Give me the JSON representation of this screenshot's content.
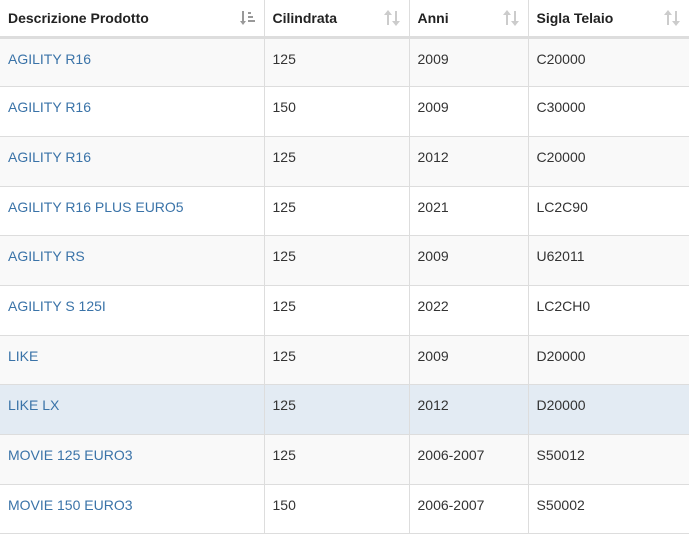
{
  "columns": [
    {
      "label": "Descrizione Prodotto",
      "sort": "sorted-asc"
    },
    {
      "label": "Cilindrata",
      "sort": "unsorted"
    },
    {
      "label": "Anni",
      "sort": "unsorted"
    },
    {
      "label": "Sigla Telaio",
      "sort": "unsorted"
    }
  ],
  "rows": [
    {
      "descrizione": "AGILITY R16",
      "cilindrata": "125",
      "anni": "2009",
      "sigla": "C20000"
    },
    {
      "descrizione": "AGILITY R16",
      "cilindrata": "150",
      "anni": "2009",
      "sigla": "C30000"
    },
    {
      "descrizione": "AGILITY R16",
      "cilindrata": "125",
      "anni": "2012",
      "sigla": "C20000"
    },
    {
      "descrizione": "AGILITY R16 PLUS EURO5",
      "cilindrata": "125",
      "anni": "2021",
      "sigla": "LC2C90"
    },
    {
      "descrizione": "AGILITY RS",
      "cilindrata": "125",
      "anni": "2009",
      "sigla": "U62011"
    },
    {
      "descrizione": "AGILITY S 125I",
      "cilindrata": "125",
      "anni": "2022",
      "sigla": "LC2CH0"
    },
    {
      "descrizione": "LIKE",
      "cilindrata": "125",
      "anni": "2009",
      "sigla": "D20000"
    },
    {
      "descrizione": "LIKE LX",
      "cilindrata": "125",
      "anni": "2012",
      "sigla": "D20000"
    },
    {
      "descrizione": "MOVIE 125 EURO3",
      "cilindrata": "125",
      "anni": "2006-2007",
      "sigla": "S50012"
    },
    {
      "descrizione": "MOVIE 150 EURO3",
      "cilindrata": "150",
      "anni": "2006-2007",
      "sigla": "S50002"
    }
  ],
  "highlighted_row": 7,
  "colors": {
    "link": "#3a73a8",
    "row_stripe": "#f9f9f9",
    "row_hover": "#e3ebf3",
    "border": "#dddddd"
  }
}
